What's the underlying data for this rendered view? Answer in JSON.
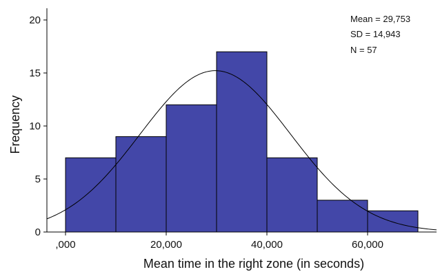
{
  "chart_data": {
    "type": "histogram",
    "xlabel": "Mean time in the right zone (in seconds)",
    "ylabel": "Frequency",
    "xlim": [
      -5000,
      74000
    ],
    "ylim": [
      0,
      21
    ],
    "bar_color": "#4347a8",
    "bins": [
      {
        "x0": 0,
        "x1": 10000,
        "count": 7
      },
      {
        "x0": 10000,
        "x1": 20000,
        "count": 9
      },
      {
        "x0": 20000,
        "x1": 30000,
        "count": 12
      },
      {
        "x0": 30000,
        "x1": 40000,
        "count": 17
      },
      {
        "x0": 40000,
        "x1": 50000,
        "count": 7
      },
      {
        "x0": 50000,
        "x1": 60000,
        "count": 3
      },
      {
        "x0": 60000,
        "x1": 70000,
        "count": 2
      }
    ],
    "xticks": [
      {
        "value": 0,
        "label": ",000"
      },
      {
        "value": 20000,
        "label": "20,000"
      },
      {
        "value": 40000,
        "label": "40,000"
      },
      {
        "value": 60000,
        "label": "60,000"
      }
    ],
    "yticks": [
      {
        "value": 0,
        "label": "0"
      },
      {
        "value": 5,
        "label": "5"
      },
      {
        "value": 10,
        "label": "10"
      },
      {
        "value": 15,
        "label": "15"
      },
      {
        "value": 20,
        "label": "20"
      }
    ],
    "normal_curve": {
      "mean": 29753,
      "sd": 14943,
      "n": 57,
      "bin_width": 10000
    },
    "stats": {
      "mean": "Mean = 29,753",
      "sd": "SD = 14,943",
      "n": "N = 57"
    }
  }
}
